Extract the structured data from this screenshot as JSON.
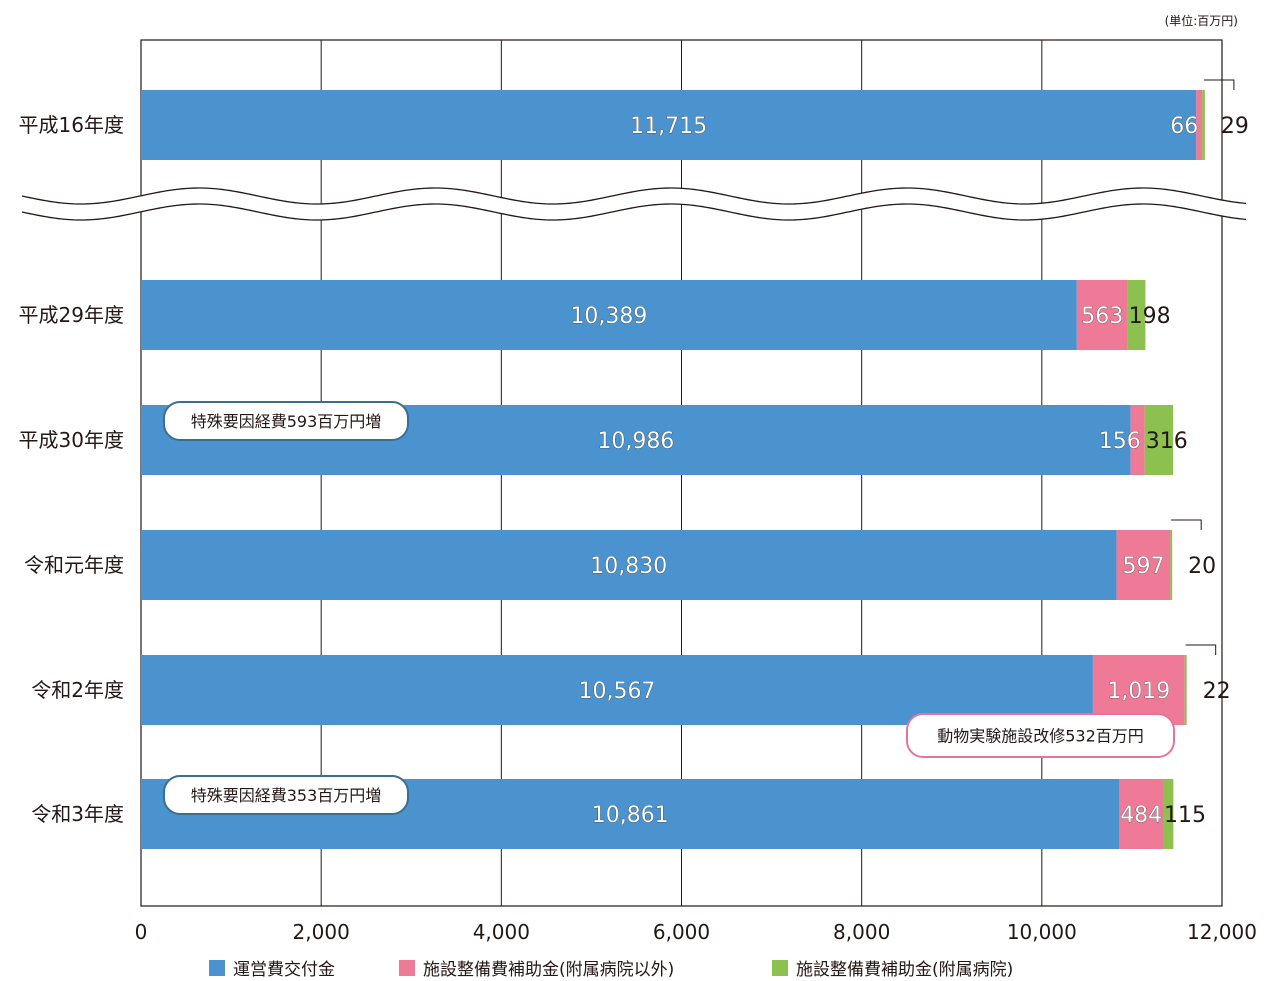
{
  "unit_note": "(単位:百万円)",
  "colors": {
    "operating": "#4a93cf",
    "facility_other": "#ef7a98",
    "facility_hospital": "#8cc04f"
  },
  "chart_data": {
    "type": "bar",
    "orientation": "horizontal",
    "stacked": true,
    "categories": [
      "平成16年度",
      "平成29年度",
      "平成30年度",
      "令和元年度",
      "令和2年度",
      "令和3年度"
    ],
    "series": [
      {
        "name": "運営費交付金",
        "values": [
          11715,
          10389,
          10986,
          10830,
          10567,
          10861
        ]
      },
      {
        "name": "施設整備費補助金(附属病院以外)",
        "values": [
          66,
          563,
          156,
          597,
          1019,
          484
        ]
      },
      {
        "name": "施設整備費補助金(附属病院)",
        "values": [
          29,
          198,
          316,
          20,
          22,
          115
        ]
      }
    ],
    "value_labels": [
      [
        "11,715",
        "66",
        "29"
      ],
      [
        "10,389",
        "563",
        "198"
      ],
      [
        "10,986",
        "156",
        "316"
      ],
      [
        "10,830",
        "597",
        "20"
      ],
      [
        "10,567",
        "1,019",
        "22"
      ],
      [
        "10,861",
        "484",
        "115"
      ]
    ],
    "xlim": [
      0,
      12000
    ],
    "x_ticks": [
      0,
      2000,
      4000,
      6000,
      8000,
      10000,
      12000
    ],
    "x_tick_labels": [
      "0",
      "2,000",
      "4,000",
      "6,000",
      "8,000",
      "10,000",
      "12,000"
    ],
    "grid": true,
    "axis_break_after_category": 0,
    "legend_position": "bottom",
    "annotations": [
      {
        "text": "特殊要因経費593百万円増",
        "category": "平成30年度",
        "style": "blue"
      },
      {
        "text": "動物実験施設改修532百万円",
        "category": "令和2年度",
        "style": "pink"
      },
      {
        "text": "特殊要因経費353百万円増",
        "category": "令和3年度",
        "style": "blue"
      }
    ]
  }
}
